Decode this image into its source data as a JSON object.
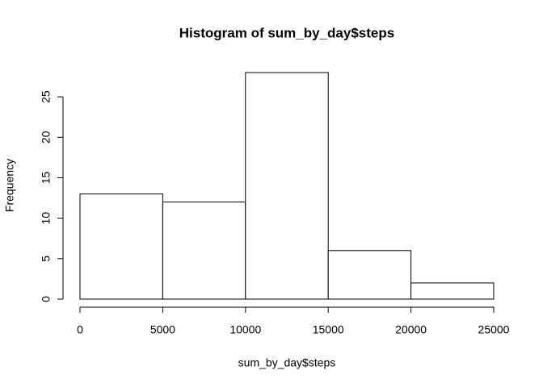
{
  "chart_data": {
    "type": "histogram",
    "title": "Histogram of sum_by_day$steps",
    "x_label": "sum_by_day$steps",
    "y_label": "Frequency",
    "bins": [
      0,
      5000,
      10000,
      15000,
      20000,
      25000
    ],
    "values": [
      13,
      12,
      28,
      6,
      2
    ],
    "color": "#ffffff",
    "edge_color": "#000000",
    "xlim": [
      0,
      25000
    ],
    "xticks": [
      0,
      5000,
      10000,
      15000,
      20000,
      25000
    ],
    "ylim": [
      0,
      28
    ],
    "yticks": [
      0,
      5,
      10,
      15,
      20,
      25
    ],
    "grid": false
  }
}
